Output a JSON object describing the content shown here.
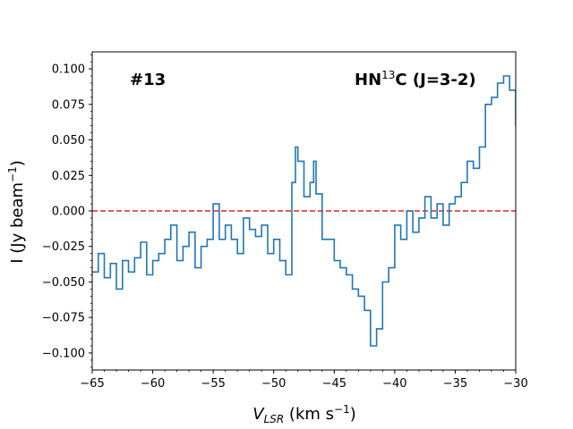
{
  "chart_data": {
    "type": "line",
    "panel_label": "#13",
    "line_label_base": "HN",
    "line_label_sup": "13",
    "line_label_rest": "C (J=3-2)",
    "xlabel_main": "V",
    "xlabel_sub": "LSR",
    "xlabel_rest": " (km s",
    "xlabel_sup": "−1",
    "xlabel_close": ")",
    "ylabel_main": "I (Jy beam",
    "ylabel_sup": "−1",
    "ylabel_close": ")",
    "xlim": [
      -65,
      -30
    ],
    "ylim": [
      -0.112,
      0.112
    ],
    "xticks": [
      -65,
      -60,
      -55,
      -50,
      -45,
      -40,
      -35,
      -30
    ],
    "xtick_labels": [
      "−65",
      "−60",
      "−55",
      "−50",
      "−45",
      "−40",
      "−35",
      "−30"
    ],
    "yticks": [
      -0.1,
      -0.075,
      -0.05,
      -0.025,
      0.0,
      0.025,
      0.05,
      0.075,
      0.1
    ],
    "ytick_labels": [
      "−0.100",
      "−0.075",
      "−0.050",
      "−0.025",
      "0.000",
      "0.025",
      "0.050",
      "0.075",
      "0.100"
    ],
    "reference_line": {
      "y": 0.0,
      "style": "dashed",
      "color": "#d62728"
    },
    "series_color": "#1f77b4",
    "grid": false,
    "series": [
      {
        "x": [
          -65.0,
          -64.5,
          -64.0,
          -63.5,
          -63.0,
          -62.5,
          -62.0,
          -61.5,
          -61.0,
          -60.5,
          -60.0,
          -59.5,
          -59.0,
          -58.5,
          -58.0,
          -57.5,
          -57.0,
          -56.5,
          -56.0,
          -55.5,
          -55.0,
          -54.5,
          -54.0,
          -53.5,
          -53.0,
          -52.5,
          -52.0,
          -51.5,
          -51.0,
          -50.5,
          -50.0,
          -49.5,
          -49.0,
          -48.5,
          -48.2,
          -48.0,
          -47.5,
          -47.0,
          -46.7,
          -46.5,
          -46.0,
          -45.5,
          -45.0,
          -44.5,
          -44.0,
          -43.5,
          -43.0,
          -42.5,
          -42.0,
          -41.5,
          -41.0,
          -40.5,
          -40.0,
          -39.5,
          -39.0,
          -38.5,
          -38.0,
          -37.5,
          -37.0,
          -36.5,
          -36.0,
          -35.5,
          -35.0,
          -34.5,
          -34.0,
          -33.5,
          -33.0,
          -32.5,
          -32.0,
          -31.5,
          -31.0,
          -30.5,
          -30.0
        ],
        "y": [
          -0.043,
          -0.03,
          -0.047,
          -0.037,
          -0.055,
          -0.035,
          -0.043,
          -0.033,
          -0.022,
          -0.045,
          -0.035,
          -0.03,
          -0.02,
          -0.01,
          -0.035,
          -0.025,
          -0.015,
          -0.04,
          -0.025,
          -0.02,
          0.005,
          -0.02,
          -0.01,
          -0.02,
          -0.03,
          -0.005,
          -0.013,
          -0.018,
          -0.01,
          -0.03,
          -0.02,
          -0.035,
          -0.045,
          0.02,
          0.045,
          0.035,
          0.01,
          0.02,
          0.035,
          0.012,
          -0.02,
          -0.02,
          -0.035,
          -0.04,
          -0.045,
          -0.055,
          -0.06,
          -0.07,
          -0.095,
          -0.083,
          -0.05,
          -0.04,
          -0.01,
          -0.02,
          0.0,
          -0.015,
          -0.005,
          0.01,
          -0.005,
          0.005,
          -0.01,
          0.005,
          0.01,
          0.02,
          0.035,
          0.03,
          0.045,
          0.075,
          0.08,
          0.09,
          0.095,
          0.085,
          0.06
        ]
      }
    ]
  }
}
